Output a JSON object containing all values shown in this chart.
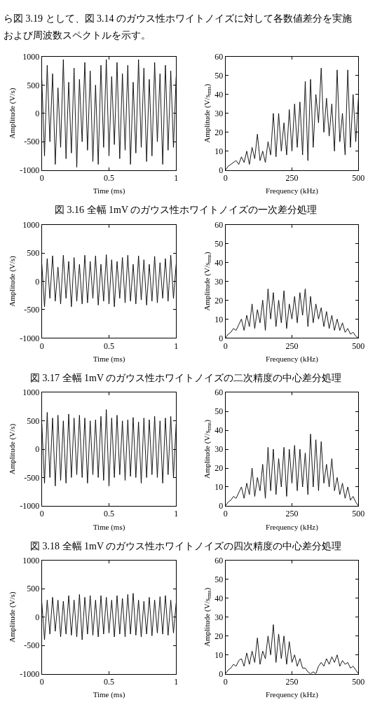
{
  "chart_data": [
    {
      "type": "line",
      "xlabel": "Time (ms)",
      "ylabel": "Amplitude (V/s)",
      "xlim": [
        0,
        1
      ],
      "xticks": [
        0,
        0.5,
        1
      ],
      "ylim": [
        -1000,
        1000
      ],
      "yticks": [
        -1000,
        -500,
        0,
        500,
        1000
      ],
      "marker": "none",
      "line_style": "solid",
      "annotations": [
        "ら図 3.19 として、図 3.14 のガウス性ホワイトノイズに対して各数値差分を実施",
        "および周波数スペクトルを示す。"
      ],
      "x": [
        0,
        0.02,
        0.04,
        0.06,
        0.08,
        0.1,
        0.12,
        0.14,
        0.16,
        0.18,
        0.2,
        0.22,
        0.24,
        0.26,
        0.28,
        0.3,
        0.32,
        0.34,
        0.36,
        0.38,
        0.4,
        0.42,
        0.44,
        0.46,
        0.48,
        0.5,
        0.52,
        0.54,
        0.56,
        0.58,
        0.6,
        0.62,
        0.64,
        0.66,
        0.68,
        0.7,
        0.72,
        0.74,
        0.76,
        0.78,
        0.8,
        0.82,
        0.84,
        0.86,
        0.88,
        0.9,
        0.92,
        0.94,
        0.96,
        0.98,
        1
      ],
      "series": [
        {
          "color": "#000000",
          "values": [
            600,
            -750,
            850,
            -500,
            700,
            -900,
            450,
            -600,
            950,
            -800,
            550,
            -700,
            800,
            -950,
            600,
            -500,
            900,
            -650,
            750,
            -850,
            500,
            -900,
            850,
            -600,
            950,
            -750,
            650,
            -550,
            900,
            -800,
            700,
            -650,
            850,
            -900,
            550,
            -700,
            950,
            -600,
            800,
            -850,
            600,
            -750,
            900,
            -500,
            700,
            -900,
            850,
            -650,
            750,
            -600,
            650
          ]
        }
      ]
    },
    {
      "type": "line",
      "xlabel": "Frequency (kHz)",
      "ylabel": "Amplitude (V/s$_{rms}$)",
      "xlim": [
        0,
        500
      ],
      "xticks": [
        0,
        250,
        500
      ],
      "ylim": [
        0,
        60
      ],
      "yticks": [
        0,
        10,
        20,
        30,
        40,
        50,
        60
      ],
      "marker": "none",
      "line_style": "solid",
      "annotations": [
        "図 3.16 全幅 1mV のガウス性ホワイトノイズの一次差分処理"
      ],
      "x": [
        0,
        10,
        20,
        30,
        40,
        50,
        60,
        70,
        80,
        90,
        100,
        110,
        120,
        130,
        140,
        150,
        160,
        170,
        180,
        190,
        200,
        210,
        220,
        230,
        240,
        250,
        260,
        270,
        280,
        290,
        300,
        310,
        320,
        330,
        340,
        350,
        360,
        370,
        380,
        390,
        400,
        410,
        420,
        430,
        440,
        450,
        460,
        470,
        480,
        490,
        500
      ],
      "series": [
        {
          "color": "#000000",
          "values": [
            0,
            2,
            3,
            4,
            5,
            3,
            7,
            4,
            10,
            3,
            12,
            6,
            19,
            5,
            10,
            4,
            15,
            8,
            30,
            7,
            30,
            10,
            25,
            8,
            32,
            10,
            35,
            12,
            36,
            8,
            47,
            5,
            48,
            12,
            40,
            25,
            54,
            20,
            38,
            18,
            35,
            10,
            53,
            15,
            30,
            8,
            53,
            12,
            40,
            15,
            38
          ]
        }
      ]
    },
    {
      "type": "line",
      "xlabel": "Time (ms)",
      "ylabel": "Amplitude (V/s)",
      "xlim": [
        0,
        1
      ],
      "xticks": [
        0,
        0.5,
        1
      ],
      "ylim": [
        -1000,
        1000
      ],
      "yticks": [
        -1000,
        -500,
        0,
        500,
        1000
      ],
      "marker": "none",
      "line_style": "solid",
      "x": [
        0,
        0.02,
        0.04,
        0.06,
        0.08,
        0.1,
        0.12,
        0.14,
        0.16,
        0.18,
        0.2,
        0.22,
        0.24,
        0.26,
        0.28,
        0.3,
        0.32,
        0.34,
        0.36,
        0.38,
        0.4,
        0.42,
        0.44,
        0.46,
        0.48,
        0.5,
        0.52,
        0.54,
        0.56,
        0.58,
        0.6,
        0.62,
        0.64,
        0.66,
        0.68,
        0.7,
        0.72,
        0.74,
        0.76,
        0.78,
        0.8,
        0.82,
        0.84,
        0.86,
        0.88,
        0.9,
        0.92,
        0.94,
        0.96,
        0.98,
        1
      ],
      "series": [
        {
          "color": "#000000",
          "values": [
            300,
            -450,
            400,
            -300,
            450,
            -350,
            250,
            -400,
            460,
            -300,
            350,
            -450,
            420,
            -350,
            300,
            -400,
            460,
            -380,
            350,
            -300,
            450,
            -420,
            300,
            -350,
            470,
            -400,
            380,
            -450,
            350,
            -300,
            420,
            -380,
            460,
            -350,
            300,
            -400,
            450,
            -330,
            380,
            -420,
            300,
            -350,
            440,
            -380,
            330,
            -300,
            400,
            -350,
            460,
            -300,
            300
          ]
        }
      ]
    },
    {
      "type": "line",
      "xlabel": "Frequency (kHz)",
      "ylabel": "Amplitude (V/s$_{rms}$)",
      "xlim": [
        0,
        500
      ],
      "xticks": [
        0,
        250,
        500
      ],
      "ylim": [
        0,
        60
      ],
      "yticks": [
        0,
        10,
        20,
        30,
        40,
        50,
        60
      ],
      "marker": "none",
      "line_style": "solid",
      "annotations": [
        "図 3.17 全幅 1mV のガウス性ホワイトノイズの二次精度の中心差分処理"
      ],
      "x": [
        0,
        10,
        20,
        30,
        40,
        50,
        60,
        70,
        80,
        90,
        100,
        110,
        120,
        130,
        140,
        150,
        160,
        170,
        180,
        190,
        200,
        210,
        220,
        230,
        240,
        250,
        260,
        270,
        280,
        290,
        300,
        310,
        320,
        330,
        340,
        350,
        360,
        370,
        380,
        390,
        400,
        410,
        420,
        430,
        440,
        450,
        460,
        470,
        480,
        490,
        500
      ],
      "series": [
        {
          "color": "#000000",
          "values": [
            0,
            2,
            3,
            5,
            4,
            7,
            10,
            4,
            12,
            6,
            18,
            5,
            15,
            8,
            20,
            4,
            26,
            10,
            24,
            6,
            20,
            8,
            25,
            5,
            18,
            10,
            22,
            8,
            24,
            12,
            26,
            6,
            22,
            8,
            18,
            10,
            16,
            6,
            14,
            5,
            12,
            4,
            10,
            4,
            8,
            3,
            5,
            2,
            3,
            1,
            0
          ]
        }
      ]
    },
    {
      "type": "line",
      "xlabel": "Time (ms)",
      "ylabel": "Amplitude (V/s)",
      "xlim": [
        0,
        1
      ],
      "xticks": [
        0,
        0.5,
        1
      ],
      "ylim": [
        -1000,
        1000
      ],
      "yticks": [
        -1000,
        -500,
        0,
        500,
        1000
      ],
      "marker": "none",
      "line_style": "solid",
      "x": [
        0,
        0.02,
        0.04,
        0.06,
        0.08,
        0.1,
        0.12,
        0.14,
        0.16,
        0.18,
        0.2,
        0.22,
        0.24,
        0.26,
        0.28,
        0.3,
        0.32,
        0.34,
        0.36,
        0.38,
        0.4,
        0.42,
        0.44,
        0.46,
        0.48,
        0.5,
        0.52,
        0.54,
        0.56,
        0.58,
        0.6,
        0.62,
        0.64,
        0.66,
        0.68,
        0.7,
        0.72,
        0.74,
        0.76,
        0.78,
        0.8,
        0.82,
        0.84,
        0.86,
        0.88,
        0.9,
        0.92,
        0.94,
        0.96,
        0.98,
        1
      ],
      "series": [
        {
          "color": "#000000",
          "values": [
            450,
            -600,
            650,
            -500,
            550,
            -650,
            600,
            -550,
            500,
            -600,
            620,
            -500,
            550,
            -450,
            600,
            -500,
            550,
            -600,
            500,
            -450,
            520,
            -500,
            580,
            -550,
            700,
            -650,
            550,
            -500,
            600,
            -450,
            500,
            -550,
            520,
            -480,
            560,
            -500,
            480,
            -600,
            550,
            -500,
            520,
            -450,
            580,
            -500,
            500,
            -600,
            550,
            -450,
            580,
            -500,
            450
          ]
        }
      ]
    },
    {
      "type": "line",
      "xlabel": "Frequency (kHz)",
      "ylabel": "Amplitude (V/s$_{rms}$)",
      "xlim": [
        0,
        500
      ],
      "xticks": [
        0,
        250,
        500
      ],
      "ylim": [
        0,
        60
      ],
      "yticks": [
        0,
        10,
        20,
        30,
        40,
        50,
        60
      ],
      "marker": "none",
      "line_style": "solid",
      "annotations": [
        "図 3.18 全幅 1mV のガウス性ホワイトノイズの四次精度の中心差分処理"
      ],
      "x": [
        0,
        10,
        20,
        30,
        40,
        50,
        60,
        70,
        80,
        90,
        100,
        110,
        120,
        130,
        140,
        150,
        160,
        170,
        180,
        190,
        200,
        210,
        220,
        230,
        240,
        250,
        260,
        270,
        280,
        290,
        300,
        310,
        320,
        330,
        340,
        350,
        360,
        370,
        380,
        390,
        400,
        410,
        420,
        430,
        440,
        450,
        460,
        470,
        480,
        490,
        500
      ],
      "series": [
        {
          "color": "#000000",
          "values": [
            0,
            2,
            3,
            5,
            4,
            7,
            10,
            4,
            12,
            6,
            20,
            5,
            15,
            8,
            22,
            4,
            31,
            8,
            30,
            6,
            25,
            10,
            31,
            5,
            30,
            12,
            32,
            8,
            30,
            10,
            28,
            6,
            38,
            10,
            35,
            8,
            34,
            12,
            22,
            10,
            25,
            8,
            15,
            6,
            12,
            4,
            10,
            3,
            5,
            2,
            0
          ]
        }
      ]
    },
    {
      "type": "line",
      "xlabel": "Time (ms)",
      "ylabel": "Amplitude (V/s)",
      "xlim": [
        0,
        1
      ],
      "xticks": [
        0,
        0.5,
        1
      ],
      "ylim": [
        -1000,
        1000
      ],
      "yticks": [
        -1000,
        -500,
        0,
        500,
        1000
      ],
      "marker": "none",
      "line_style": "solid",
      "x": [
        0,
        0.02,
        0.04,
        0.06,
        0.08,
        0.1,
        0.12,
        0.14,
        0.16,
        0.18,
        0.2,
        0.22,
        0.24,
        0.26,
        0.28,
        0.3,
        0.32,
        0.34,
        0.36,
        0.38,
        0.4,
        0.42,
        0.44,
        0.46,
        0.48,
        0.5,
        0.52,
        0.54,
        0.56,
        0.58,
        0.6,
        0.62,
        0.64,
        0.66,
        0.68,
        0.7,
        0.72,
        0.74,
        0.76,
        0.78,
        0.8,
        0.82,
        0.84,
        0.86,
        0.88,
        0.9,
        0.92,
        0.94,
        0.96,
        0.98,
        1
      ],
      "series": [
        {
          "color": "#000000",
          "values": [
            250,
            -400,
            300,
            -300,
            350,
            -250,
            300,
            -350,
            280,
            -300,
            380,
            -320,
            300,
            -350,
            400,
            -400,
            350,
            -300,
            380,
            -320,
            300,
            -350,
            380,
            -300,
            350,
            -280,
            300,
            -350,
            380,
            -300,
            330,
            -350,
            400,
            -300,
            420,
            -320,
            300,
            -350,
            280,
            -300,
            350,
            -330,
            300,
            -280,
            360,
            -300,
            380,
            -320,
            300,
            -280,
            250
          ]
        }
      ]
    },
    {
      "type": "line",
      "xlabel": "Frequency (kHz)",
      "ylabel": "Amplitude (V/s$_{rms}$)",
      "xlim": [
        0,
        500
      ],
      "xticks": [
        0,
        250,
        500
      ],
      "ylim": [
        0,
        60
      ],
      "yticks": [
        0,
        10,
        20,
        30,
        40,
        50,
        60
      ],
      "marker": "none",
      "line_style": "solid",
      "x": [
        0,
        10,
        20,
        30,
        40,
        50,
        60,
        70,
        80,
        90,
        100,
        110,
        120,
        130,
        140,
        150,
        160,
        170,
        180,
        190,
        200,
        210,
        220,
        230,
        240,
        250,
        260,
        270,
        280,
        290,
        300,
        310,
        320,
        330,
        340,
        350,
        360,
        370,
        380,
        390,
        400,
        410,
        420,
        430,
        440,
        450,
        460,
        470,
        480,
        490,
        500
      ],
      "series": [
        {
          "color": "#000000",
          "values": [
            0,
            2,
            3,
            5,
            4,
            7,
            8,
            4,
            11,
            5,
            12,
            6,
            19,
            5,
            12,
            8,
            20,
            10,
            26,
            6,
            21,
            8,
            20,
            5,
            17,
            6,
            10,
            4,
            8,
            3,
            3,
            1,
            0,
            1,
            0,
            4,
            6,
            4,
            8,
            5,
            9,
            6,
            10,
            4,
            7,
            5,
            6,
            3,
            4,
            2,
            0
          ]
        }
      ]
    }
  ]
}
